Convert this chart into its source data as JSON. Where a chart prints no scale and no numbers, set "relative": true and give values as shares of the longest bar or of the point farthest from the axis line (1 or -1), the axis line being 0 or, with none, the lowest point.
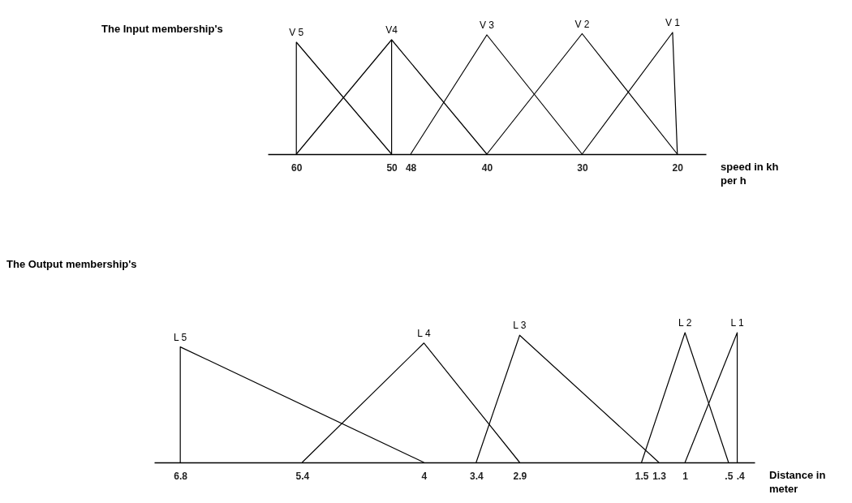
{
  "chart_data": [
    {
      "type": "line",
      "title": "The Input membership's",
      "xlabel": "speed in kh per h",
      "relative": true,
      "xlim": [
        63,
        17
      ],
      "xticks": [
        60,
        50,
        48,
        40,
        30,
        20
      ],
      "legend": false,
      "marker": "none",
      "line_style": "solid",
      "series": [
        {
          "name": "V 5",
          "color": "#000000",
          "x": [
            60,
            60,
            50
          ],
          "values": [
            0,
            0.92,
            0
          ]
        },
        {
          "name": "V4",
          "color": "#000000",
          "x": [
            60,
            50,
            50,
            50,
            40
          ],
          "values": [
            0,
            0.94,
            0,
            0.94,
            0
          ]
        },
        {
          "name": "V 3",
          "color": "#000000",
          "x": [
            48,
            40,
            30
          ],
          "values": [
            0,
            0.98,
            0
          ]
        },
        {
          "name": "V 2",
          "color": "#000000",
          "x": [
            40,
            30,
            20
          ],
          "values": [
            0,
            0.99,
            0
          ]
        },
        {
          "name": "V 1",
          "color": "#000000",
          "x": [
            30,
            20.5,
            20
          ],
          "values": [
            0,
            1,
            0
          ]
        }
      ]
    },
    {
      "type": "line",
      "title": "The Output membership's",
      "xlabel": "Distance in meter",
      "relative": true,
      "xlim": [
        7.1,
        0.2
      ],
      "xticks": [
        6.8,
        5.4,
        4,
        3.4,
        2.9,
        1.5,
        1.3,
        1,
        {
          "value": 0.5,
          "label": ".5"
        },
        {
          "value": 0.4,
          "label": ".4"
        }
      ],
      "legend": false,
      "marker": "none",
      "line_style": "solid",
      "series": [
        {
          "name": "L 5",
          "color": "#000000",
          "x": [
            6.8,
            6.8,
            4
          ],
          "values": [
            0,
            0.89,
            0
          ]
        },
        {
          "name": "L 4",
          "color": "#000000",
          "x": [
            5.4,
            4,
            2.9
          ],
          "values": [
            0,
            0.92,
            0
          ]
        },
        {
          "name": "L 3",
          "color": "#000000",
          "x": [
            3.4,
            2.9,
            1.3
          ],
          "values": [
            0,
            0.98,
            0
          ]
        },
        {
          "name": "L 2",
          "color": "#000000",
          "x": [
            1.5,
            1,
            0.5
          ],
          "values": [
            0,
            1,
            0
          ]
        },
        {
          "name": "L 1",
          "color": "#000000",
          "x": [
            1,
            0.4,
            0.4
          ],
          "values": [
            0,
            1,
            0
          ]
        }
      ]
    }
  ]
}
